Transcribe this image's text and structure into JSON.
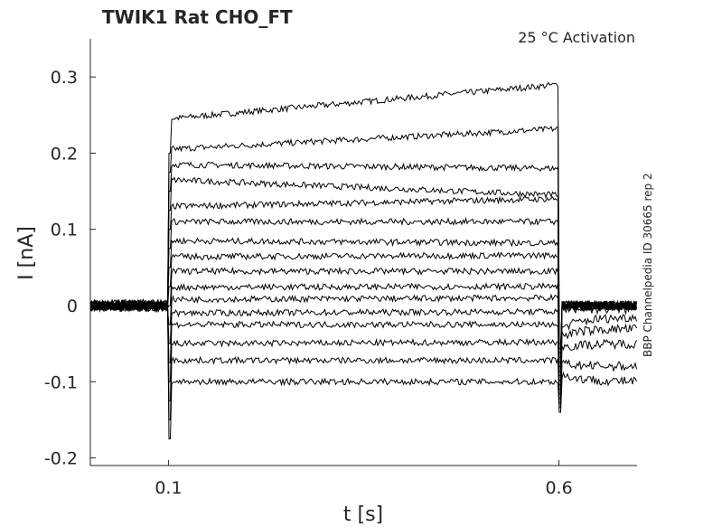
{
  "chart_data": {
    "type": "line",
    "title": "TWIK1  Rat  CHO_FT",
    "annotation": "25 °C  Activation",
    "side_label": "BBP Channelpedia ID 30665 rep 2",
    "xlabel": "t [s]",
    "ylabel": "I [nA]",
    "xlim": [
      0,
      0.7
    ],
    "ylim": [
      -0.21,
      0.35
    ],
    "xticks": [
      0.1,
      0.6
    ],
    "xtick_labels": [
      "0.1",
      "0.6"
    ],
    "yticks": [
      -0.2,
      -0.1,
      0,
      0.1,
      0.2,
      0.3
    ],
    "ytick_labels": [
      "-0.2",
      "-0.1",
      "0",
      "0.1",
      "0.2",
      "0.3"
    ],
    "grid": false,
    "step_on": 0.1,
    "step_off": 0.6,
    "series": [
      {
        "name": "trace 1",
        "start": 0.245,
        "end": 0.29,
        "tail": 0.0
      },
      {
        "name": "trace 2",
        "start": 0.205,
        "end": 0.232,
        "tail": 0.0
      },
      {
        "name": "trace 3",
        "start": 0.185,
        "end": 0.18,
        "tail": 0.0
      },
      {
        "name": "trace 4",
        "start": 0.165,
        "end": 0.145,
        "tail": 0.0
      },
      {
        "name": "trace 5",
        "start": 0.13,
        "end": 0.14,
        "tail": 0.0
      },
      {
        "name": "trace 6",
        "start": 0.11,
        "end": 0.11,
        "tail": 0.0
      },
      {
        "name": "trace 7",
        "start": 0.085,
        "end": 0.082,
        "tail": 0.0
      },
      {
        "name": "trace 8",
        "start": 0.064,
        "end": 0.066,
        "tail": 0.0
      },
      {
        "name": "trace 9",
        "start": 0.045,
        "end": 0.045,
        "tail": 0.0
      },
      {
        "name": "trace 10",
        "start": 0.024,
        "end": 0.025,
        "tail": 0.0
      },
      {
        "name": "trace 11",
        "start": 0.008,
        "end": 0.01,
        "tail": -0.005
      },
      {
        "name": "trace 12",
        "start": -0.01,
        "end": -0.008,
        "tail": -0.015
      },
      {
        "name": "trace 13",
        "start": -0.025,
        "end": -0.025,
        "tail": -0.03
      },
      {
        "name": "trace 14",
        "start": -0.05,
        "end": -0.048,
        "tail": -0.05
      },
      {
        "name": "trace 15",
        "start": -0.072,
        "end": -0.072,
        "tail": -0.08
      },
      {
        "name": "trace 16",
        "start": -0.1,
        "end": -0.1,
        "tail": -0.1
      }
    ]
  }
}
